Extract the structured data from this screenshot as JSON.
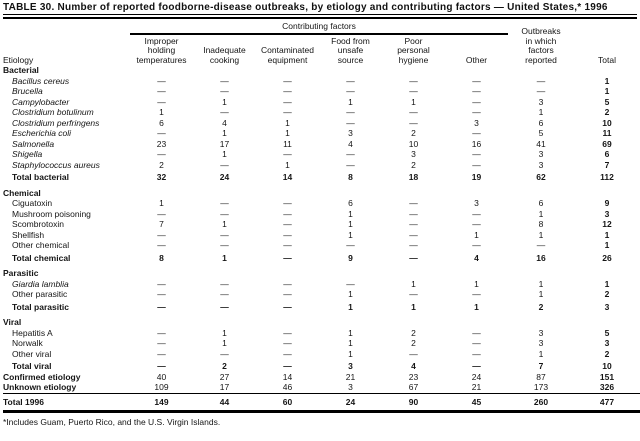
{
  "title": "TABLE 30. Number of reported foodborne-disease outbreaks, by etiology and contributing factors — United States,* 1996",
  "header": {
    "etiology_label": "Etiology",
    "contributing_factors_label": "Contributing factors",
    "factor_columns": [
      "Improper\nholding\ntemperatures",
      "Inadequate\ncooking",
      "Contaminated\nequipment",
      "Food from\nunsafe\nsource",
      "Poor\npersonal\nhygiene",
      "Other"
    ],
    "outbreaks_reported_label": "Outbreaks\nin which\nfactors\nreported",
    "total_label": "Total"
  },
  "rows": [
    {
      "label": "Bacterial",
      "style": "section"
    },
    {
      "label": "Bacillus cereus",
      "style": "item",
      "italic": true,
      "indent": true,
      "values": [
        "—",
        "—",
        "—",
        "—",
        "—",
        "—",
        "—",
        "1"
      ]
    },
    {
      "label": "Brucella",
      "style": "item",
      "italic": true,
      "indent": true,
      "values": [
        "—",
        "—",
        "—",
        "—",
        "—",
        "—",
        "—",
        "1"
      ]
    },
    {
      "label": "Campylobacter",
      "style": "item",
      "italic": true,
      "indent": true,
      "values": [
        "—",
        "1",
        "—",
        "1",
        "1",
        "—",
        "3",
        "5"
      ]
    },
    {
      "label": "Clostridium botulinum",
      "style": "item",
      "italic": true,
      "indent": true,
      "values": [
        "1",
        "—",
        "—",
        "—",
        "—",
        "—",
        "1",
        "2"
      ]
    },
    {
      "label": "Clostridium perfringens",
      "style": "item",
      "italic": true,
      "indent": true,
      "values": [
        "6",
        "4",
        "1",
        "—",
        "—",
        "3",
        "6",
        "10"
      ]
    },
    {
      "label": "Escherichia coli",
      "style": "item",
      "italic": true,
      "indent": true,
      "values": [
        "—",
        "1",
        "1",
        "3",
        "2",
        "—",
        "5",
        "11"
      ]
    },
    {
      "label": "Salmonella",
      "style": "item",
      "italic": true,
      "indent": true,
      "values": [
        "23",
        "17",
        "11",
        "4",
        "10",
        "16",
        "41",
        "69"
      ]
    },
    {
      "label": "Shigella",
      "style": "item",
      "italic": true,
      "indent": true,
      "values": [
        "—",
        "1",
        "—",
        "—",
        "3",
        "—",
        "3",
        "6"
      ]
    },
    {
      "label": "Staphylococcus aureus",
      "style": "item",
      "italic": true,
      "indent": true,
      "values": [
        "2",
        "—",
        "1",
        "—",
        "2",
        "—",
        "3",
        "7"
      ]
    },
    {
      "label": "Total bacterial",
      "style": "total",
      "indent": true,
      "values": [
        "32",
        "24",
        "14",
        "8",
        "18",
        "19",
        "62",
        "112"
      ]
    },
    {
      "label": "Chemical",
      "style": "section",
      "gap": true
    },
    {
      "label": "Ciguatoxin",
      "style": "item",
      "indent": true,
      "values": [
        "1",
        "—",
        "—",
        "6",
        "—",
        "3",
        "6",
        "9"
      ]
    },
    {
      "label": "Mushroom poisoning",
      "style": "item",
      "indent": true,
      "values": [
        "—",
        "—",
        "—",
        "1",
        "—",
        "—",
        "1",
        "3"
      ]
    },
    {
      "label": "Scombrotoxin",
      "style": "item",
      "indent": true,
      "values": [
        "7",
        "1",
        "—",
        "1",
        "—",
        "—",
        "8",
        "12"
      ]
    },
    {
      "label": "Shellfish",
      "style": "item",
      "indent": true,
      "values": [
        "—",
        "—",
        "—",
        "1",
        "—",
        "1",
        "1",
        "1"
      ]
    },
    {
      "label": "Other chemical",
      "style": "item",
      "indent": true,
      "values": [
        "—",
        "—",
        "—",
        "—",
        "—",
        "—",
        "—",
        "1"
      ]
    },
    {
      "label": "Total chemical",
      "style": "total",
      "indent": true,
      "values": [
        "8",
        "1",
        "—",
        "9",
        "—",
        "4",
        "16",
        "26"
      ]
    },
    {
      "label": "Parasitic",
      "style": "section",
      "gap": true
    },
    {
      "label": "Giardia lamblia",
      "style": "item",
      "italic": true,
      "indent": true,
      "values": [
        "—",
        "—",
        "—",
        "—",
        "1",
        "1",
        "1",
        "1"
      ]
    },
    {
      "label": "Other parasitic",
      "style": "item",
      "indent": true,
      "values": [
        "—",
        "—",
        "—",
        "1",
        "—",
        "—",
        "1",
        "2"
      ]
    },
    {
      "label": "Total parasitic",
      "style": "total",
      "indent": true,
      "values": [
        "—",
        "—",
        "—",
        "1",
        "1",
        "1",
        "2",
        "3"
      ]
    },
    {
      "label": "Viral",
      "style": "section",
      "gap": true
    },
    {
      "label": "Hepatitis A",
      "style": "item",
      "indent": true,
      "values": [
        "—",
        "1",
        "—",
        "1",
        "2",
        "—",
        "3",
        "5"
      ]
    },
    {
      "label": "Norwalk",
      "style": "item",
      "indent": true,
      "values": [
        "—",
        "1",
        "—",
        "1",
        "2",
        "—",
        "3",
        "3"
      ]
    },
    {
      "label": "Other viral",
      "style": "item",
      "indent": true,
      "values": [
        "—",
        "—",
        "—",
        "1",
        "—",
        "—",
        "1",
        "2"
      ]
    },
    {
      "label": "Total viral",
      "style": "total",
      "indent": true,
      "values": [
        "—",
        "2",
        "—",
        "3",
        "4",
        "—",
        "7",
        "10"
      ]
    },
    {
      "label": "Confirmed etiology",
      "style": "summary",
      "values": [
        "40",
        "27",
        "14",
        "21",
        "23",
        "24",
        "87",
        "151"
      ]
    },
    {
      "label": "Unknown etiology",
      "style": "summary",
      "values": [
        "109",
        "17",
        "46",
        "3",
        "67",
        "21",
        "173",
        "326"
      ]
    },
    {
      "label": "Total 1996",
      "style": "grand",
      "values": [
        "149",
        "44",
        "60",
        "24",
        "90",
        "45",
        "260",
        "477"
      ]
    }
  ],
  "footnote": "*Includes Guam, Puerto Rico, and the U.S. Virgin Islands.",
  "colors": {
    "text": "#151515",
    "background": "#ffffff",
    "rule": "#000000"
  }
}
